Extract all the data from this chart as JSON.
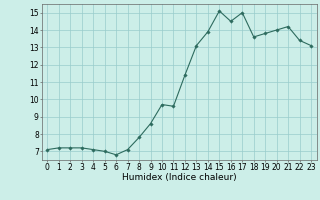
{
  "x": [
    0,
    1,
    2,
    3,
    4,
    5,
    6,
    7,
    8,
    9,
    10,
    11,
    12,
    13,
    14,
    15,
    16,
    17,
    18,
    19,
    20,
    21,
    22,
    23
  ],
  "y": [
    7.1,
    7.2,
    7.2,
    7.2,
    7.1,
    7.0,
    6.8,
    7.1,
    7.8,
    8.6,
    9.7,
    9.6,
    11.4,
    13.1,
    13.9,
    15.1,
    14.5,
    15.0,
    13.6,
    13.8,
    14.0,
    14.2,
    13.4,
    13.1
  ],
  "line_color": "#2d6b5e",
  "marker": "D",
  "marker_size": 1.8,
  "bg_color": "#cceee8",
  "grid_color": "#99cccc",
  "xlabel": "Humidex (Indice chaleur)",
  "xlim": [
    -0.5,
    23.5
  ],
  "ylim": [
    6.5,
    15.5
  ],
  "yticks": [
    7,
    8,
    9,
    10,
    11,
    12,
    13,
    14,
    15
  ],
  "xticks": [
    0,
    1,
    2,
    3,
    4,
    5,
    6,
    7,
    8,
    9,
    10,
    11,
    12,
    13,
    14,
    15,
    16,
    17,
    18,
    19,
    20,
    21,
    22,
    23
  ],
  "tick_label_size": 5.5,
  "xlabel_size": 6.5,
  "linewidth": 0.8
}
